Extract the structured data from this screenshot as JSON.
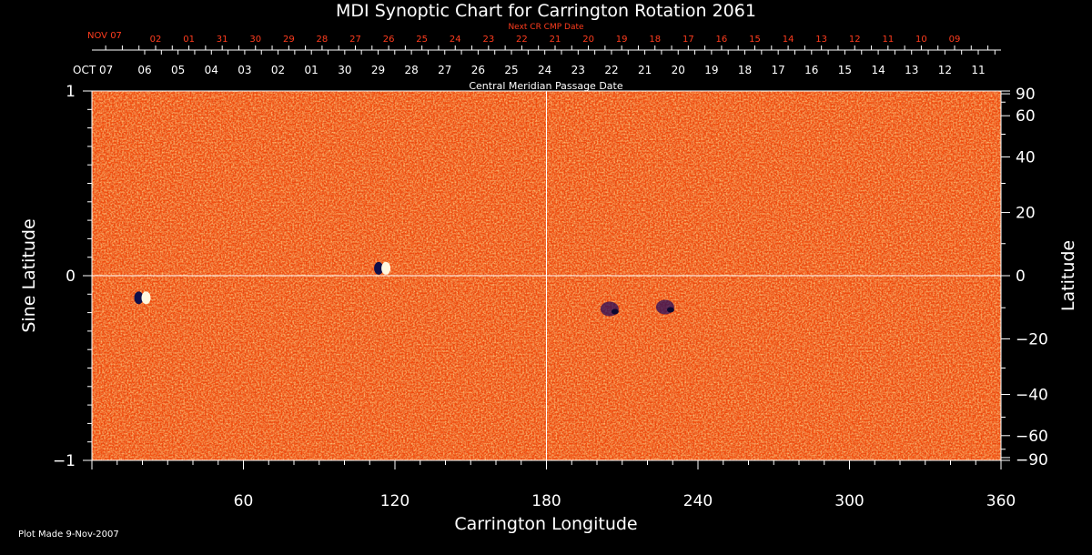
{
  "chart_data": {
    "type": "heatmap",
    "title": "MDI Synoptic Chart for Carrington Rotation 2061",
    "xlabel": "Carrington Longitude",
    "ylabel_left": "Sine Latitude",
    "ylabel_right": "Latitude",
    "xlim": [
      0,
      360
    ],
    "ylim": [
      -1,
      1
    ],
    "x_ticks": [
      "60",
      "120",
      "180",
      "240",
      "300",
      "360"
    ],
    "y_ticks_left": [
      "1",
      "0",
      "−1"
    ],
    "y_ticks_right": [
      "90",
      "60",
      "40",
      "20",
      "0",
      "−20",
      "−40",
      "−60",
      "−90"
    ],
    "y_ticks_right_values": [
      90,
      60,
      40,
      20,
      0,
      -20,
      -40,
      -60,
      -90
    ],
    "top_axis": {
      "label": "Central Meridian Passage Date",
      "start_label": "OCT 07",
      "dates": [
        "06",
        "05",
        "04",
        "03",
        "02",
        "01",
        "30",
        "29",
        "28",
        "27",
        "26",
        "25",
        "24",
        "23",
        "22",
        "21",
        "20",
        "19",
        "18",
        "17",
        "16",
        "15",
        "14",
        "13",
        "12",
        "11"
      ]
    },
    "next_cr_axis": {
      "label": "Next CR CMP Date",
      "start_label": "NOV 07",
      "dates": [
        "02",
        "01",
        "31",
        "30",
        "29",
        "28",
        "27",
        "26",
        "25",
        "24",
        "23",
        "22",
        "21",
        "20",
        "19",
        "18",
        "17",
        "16",
        "15",
        "14",
        "13",
        "12",
        "11",
        "10",
        "09"
      ]
    },
    "grid_lines": {
      "longitude": 180,
      "sine_latitude": 0
    },
    "background_color": "#f04a0c",
    "features": [
      {
        "longitude": 115,
        "sine_latitude": 0.04,
        "polarity": "bipolar"
      },
      {
        "longitude": 20,
        "sine_latitude": -0.12,
        "polarity": "bipolar"
      },
      {
        "longitude": 205,
        "sine_latitude": -0.18,
        "polarity": "negative"
      },
      {
        "longitude": 227,
        "sine_latitude": -0.17,
        "polarity": "negative"
      }
    ]
  },
  "footer": {
    "plot_made": "Plot Made  9-Nov-2007"
  }
}
